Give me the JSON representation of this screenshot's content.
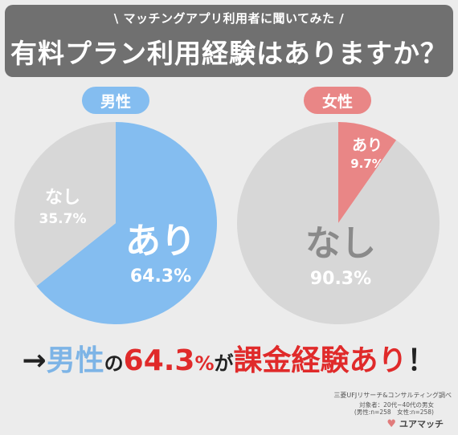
{
  "header": {
    "subtitle": "\\ マッチングアプリ利用者に聞いてみた /",
    "title": "有料プラン利用経験はありますか？"
  },
  "labels": {
    "male": "男性",
    "female": "女性"
  },
  "colors": {
    "male": "#84bdf0",
    "female": "#e98686",
    "none": "#d7d7d7",
    "header": "#707070"
  },
  "chart_data": [
    {
      "type": "pie",
      "name": "男性",
      "slices": [
        {
          "label": "あり",
          "value": 64.3,
          "display": "64.3%"
        },
        {
          "label": "なし",
          "value": 35.7,
          "display": "35.7%"
        }
      ]
    },
    {
      "type": "pie",
      "name": "女性",
      "slices": [
        {
          "label": "あり",
          "value": 9.7,
          "display": "9.7%"
        },
        {
          "label": "なし",
          "value": 90.3,
          "display": "90.3%"
        }
      ]
    }
  ],
  "conclusion": {
    "arrow": "→",
    "subject": "男性",
    "particle1": "の",
    "percent": "64.3",
    "percent_sign": "%",
    "particle2": "が",
    "result": "課金経験あり",
    "exclaim": "！"
  },
  "footer": {
    "source": "三菱UFJリサーチ&コンサルティング調べ",
    "subjects_line1": "対象者：20代~40代の男女",
    "subjects_line2": "(男性:n=258　女性:n=258)",
    "logo": "ユアマッチ",
    "logo_icon": "heart-icon"
  }
}
